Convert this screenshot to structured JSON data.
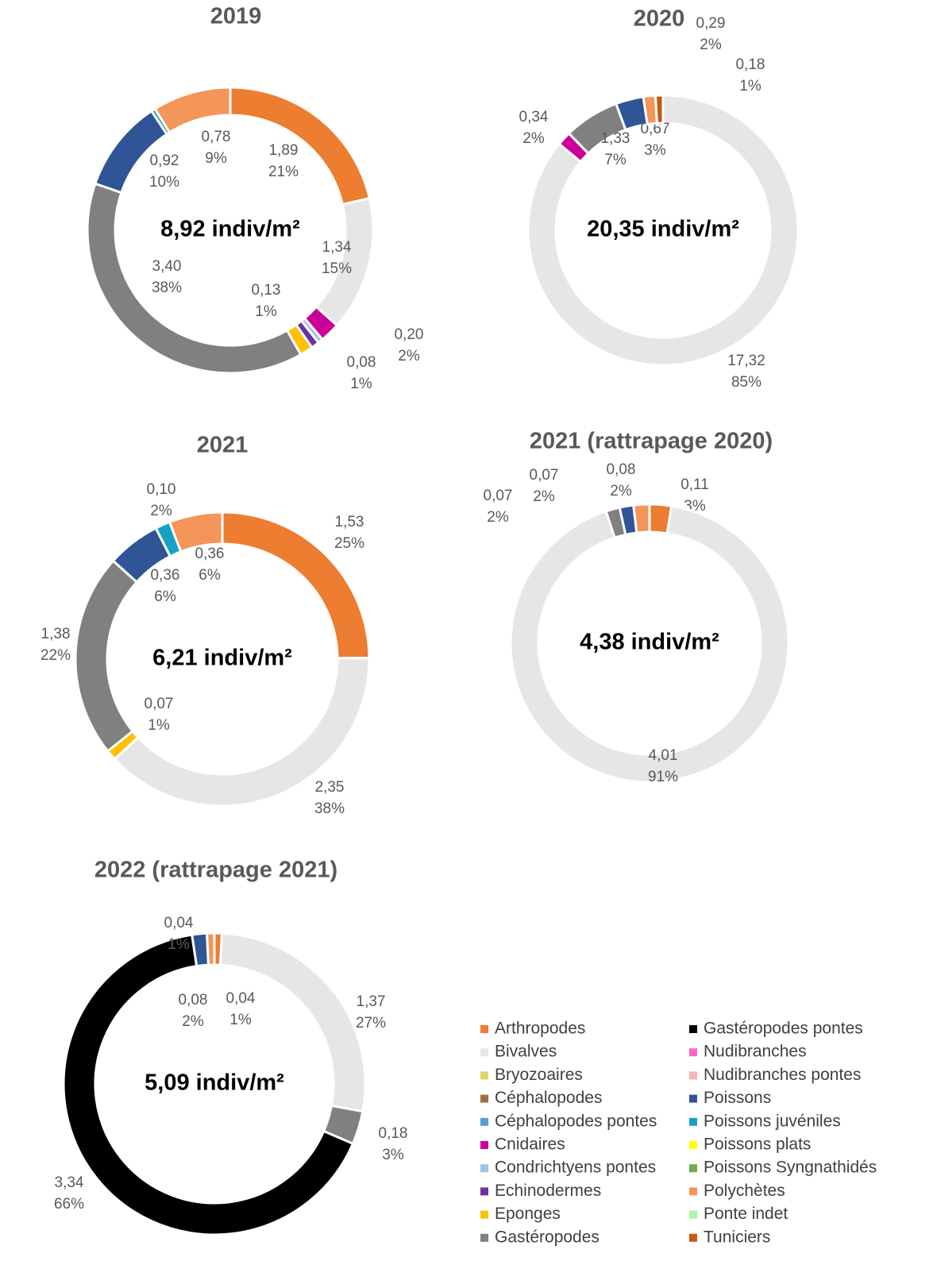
{
  "chart_data": [
    {
      "type": "donut",
      "title": "2019",
      "total_label": "8,92 indiv/m²",
      "categories": [
        "Arthropodes",
        "Bivalves",
        "Cnidaires",
        "Condrichtyens pontes",
        "Echinodermes",
        "Eponges",
        "Gastéropodes",
        "Poissons",
        "Poissons juvéniles",
        "Polychètes"
      ],
      "values": [
        1.89,
        1.34,
        0.2,
        0.05,
        0.08,
        0.13,
        3.4,
        0.92,
        0.04,
        0.78
      ],
      "value_labels": [
        "1,89",
        "1,34",
        "0,20",
        null,
        "0,08",
        "0,13",
        "3,40",
        "0,92",
        null,
        "0,78"
      ],
      "percent_labels": [
        "21%",
        "15%",
        "2%",
        null,
        "1%",
        "1%",
        "38%",
        "10%",
        null,
        "9%"
      ]
    },
    {
      "type": "donut",
      "title": "2020",
      "total_label": "20,35 indiv/m²",
      "categories": [
        "Bivalves",
        "Cnidaires",
        "Gastéropodes",
        "Poissons",
        "Polychètes",
        "Tuniciers"
      ],
      "values": [
        17.32,
        0.34,
        1.33,
        0.67,
        0.29,
        0.18
      ],
      "value_labels": [
        "17,32",
        "0,34",
        "1,33",
        "0,67",
        "0,29",
        "0,18"
      ],
      "percent_labels": [
        "85%",
        "2%",
        "7%",
        "3%",
        "2%",
        "1%"
      ]
    },
    {
      "type": "donut",
      "title": "2021",
      "total_label": "6,21 indiv/m²",
      "categories": [
        "Arthropodes",
        "Bivalves",
        "Eponges",
        "Gastéropodes",
        "Poissons",
        "Poissons juvéniles",
        "Polychètes"
      ],
      "values": [
        1.53,
        2.35,
        0.07,
        1.38,
        0.36,
        0.1,
        0.36
      ],
      "value_labels": [
        "1,53",
        "2,35",
        "0,07",
        "1,38",
        "0,36",
        "0,10",
        "0,36"
      ],
      "percent_labels": [
        "25%",
        "38%",
        "1%",
        "22%",
        "6%",
        "2%",
        "6%"
      ]
    },
    {
      "type": "donut",
      "title": "2021 (rattrapage 2020)",
      "total_label": "4,38 indiv/m²",
      "categories": [
        "Arthropodes",
        "Bivalves",
        "Gastéropodes",
        "Poissons",
        "Polychètes"
      ],
      "values": [
        0.11,
        4.01,
        0.07,
        0.07,
        0.08
      ],
      "value_labels": [
        "0,11",
        "4,01",
        "0,07",
        "0,07",
        "0,08"
      ],
      "percent_labels": [
        "3%",
        "91%",
        "2%",
        "2%",
        "2%"
      ]
    },
    {
      "type": "donut",
      "title": "2022 (rattrapage 2021)",
      "total_label": "5,09 indiv/m²",
      "categories": [
        "Arthropodes",
        "Bivalves",
        "Gastéropodes",
        "Gastéropodes pontes",
        "Poissons",
        "Polychètes"
      ],
      "values": [
        0.04,
        1.37,
        0.18,
        3.34,
        0.08,
        0.04
      ],
      "value_labels": [
        "0,04",
        "1,37",
        "0,18",
        "3,34",
        "0,08",
        "0,04"
      ],
      "percent_labels": [
        "1%",
        "27%",
        "3%",
        "66%",
        "2%",
        "1%"
      ],
      "legend": {
        "names": [
          "Arthropodes",
          "Bivalves",
          "Bryozoaires",
          "Céphalopodes",
          "Céphalopodes pontes",
          "Cnidaires",
          "Condrichtyens pontes",
          "Echinodermes",
          "Eponges",
          "Gastéropodes",
          "Gastéropodes pontes",
          "Nudibranches",
          "Nudibranches pontes",
          "Poissons",
          "Poissons juvéniles",
          "Poissons plats",
          "Poissons Syngnathidés",
          "Polychètes",
          "Ponte indet",
          "Tuniciers"
        ],
        "colors": [
          "#ed7d31",
          "#e7e6e6",
          "#d9d96a",
          "#a0703c",
          "#5b9bd5",
          "#cc0099",
          "#9dc3e6",
          "#7030a0",
          "#ffc000",
          "#808080",
          "#000000",
          "#ff66cc",
          "#f4b6b6",
          "#2f5597",
          "#17a2c4",
          "#ffff00",
          "#70ad47",
          "#f4955a",
          "#a9f5a9",
          "#c55a11"
        ]
      }
    }
  ]
}
